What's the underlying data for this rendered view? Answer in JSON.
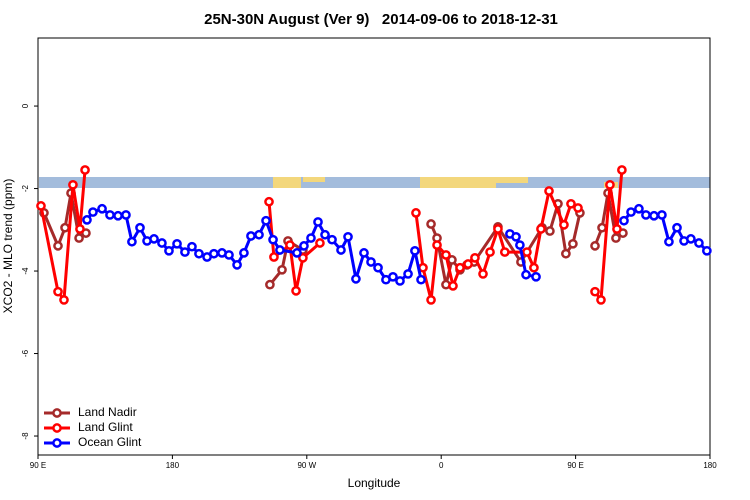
{
  "chart_data": {
    "type": "line",
    "title": "25N-30N August (Ver 9)   2014-09-06 to 2018-12-31",
    "x_label": "Longitude",
    "y_label": "XCO2 - MLO trend (ppm)",
    "xlim": [
      90,
      540
    ],
    "ylim": [
      -8.46,
      1.65
    ],
    "xticks": [
      {
        "value": 90,
        "label": "90 E"
      },
      {
        "value": 180,
        "label": "180"
      },
      {
        "value": 270,
        "label": "90 W"
      },
      {
        "value": 360,
        "label": "0"
      },
      {
        "value": 450,
        "label": "90 E"
      },
      {
        "value": 540,
        "label": "180"
      }
    ],
    "yticks": [
      0,
      -2,
      -4,
      -6,
      -8
    ],
    "legend": "bottom-left",
    "series": [
      {
        "name": "Land Nadir",
        "color": "#a52a2a",
        "x": [
          94.0,
          103.4,
          108.1,
          112.1,
          117.5,
          122.1,
          null,
          245.3,
          253.4,
          257.4,
          267.4,
          null,
          353.2,
          357.2,
          363.2,
          367.2,
          372.6,
          377.3,
          382.0,
          398.0,
          413.4,
          427.5,
          432.8,
          438.2,
          443.5,
          448.2,
          452.9,
          null,
          463.0,
          467.7,
          471.7,
          477.0,
          481.7
        ],
        "values": [
          -2.59,
          -3.39,
          -2.95,
          -2.11,
          -3.2,
          -3.08,
          null,
          -4.33,
          -3.97,
          -3.27,
          -3.49,
          null,
          -2.86,
          -3.2,
          -4.33,
          -3.73,
          -3.97,
          -3.85,
          -3.78,
          -2.93,
          -3.78,
          -2.95,
          -3.03,
          -2.37,
          -3.58,
          -3.34,
          -2.59,
          null,
          -3.39,
          -2.95,
          -2.11,
          -3.2,
          -3.08
        ]
      },
      {
        "name": "Land Glint",
        "color": "#ff0000",
        "x": [
          92.0,
          103.4,
          107.4,
          113.4,
          118.1,
          121.5,
          null,
          244.7,
          248.0,
          258.7,
          262.8,
          267.4,
          278.8,
          null,
          343.1,
          347.8,
          353.2,
          357.2,
          363.2,
          367.9,
          372.6,
          378.0,
          382.6,
          388.0,
          392.7,
          398.0,
          402.6,
          417.4,
          422.1,
          426.8,
          432.2,
          442.2,
          446.9,
          451.6,
          null,
          463.0,
          467.0,
          473.0,
          477.7,
          481.0
        ],
        "values": [
          -2.42,
          -4.5,
          -4.7,
          -1.91,
          -2.98,
          -1.55,
          null,
          -2.32,
          -3.66,
          -3.37,
          -4.48,
          -3.68,
          -3.32,
          null,
          -2.59,
          -3.92,
          -4.7,
          -3.37,
          -3.61,
          -4.36,
          -3.92,
          -3.83,
          -3.68,
          -4.07,
          -3.54,
          -2.98,
          -3.54,
          -3.54,
          -3.92,
          -2.98,
          -2.06,
          -2.88,
          -2.37,
          -2.47,
          null,
          -4.5,
          -4.7,
          -1.91,
          -2.98,
          -1.55
        ]
      },
      {
        "name": "Ocean Glint",
        "color": "#0000ff",
        "x": [
          122.8,
          126.8,
          132.9,
          138.2,
          143.6,
          148.9,
          152.9,
          158.3,
          163.0,
          167.7,
          173.0,
          177.7,
          183.1,
          188.4,
          193.1,
          197.8,
          203.2,
          207.8,
          213.2,
          217.9,
          223.3,
          227.9,
          232.6,
          238.0,
          242.7,
          247.4,
          252.0,
          263.4,
          268.1,
          272.8,
          277.5,
          282.2,
          286.9,
          292.9,
          297.6,
          302.9,
          308.3,
          313.0,
          317.7,
          323.0,
          327.7,
          332.4,
          337.8,
          342.4,
          346.5,
          null,
          406.0,
          410.1,
          412.7,
          416.8,
          423.5,
          null,
          482.4,
          487.1,
          492.4,
          497.1,
          502.5,
          507.8,
          512.5,
          517.9,
          522.6,
          527.2,
          532.6,
          537.9
        ],
        "values": [
          -2.76,
          -2.57,
          -2.49,
          -2.64,
          -2.66,
          -2.64,
          -3.29,
          -2.95,
          -3.27,
          -3.22,
          -3.32,
          -3.51,
          -3.34,
          -3.54,
          -3.41,
          -3.58,
          -3.66,
          -3.58,
          -3.56,
          -3.61,
          -3.85,
          -3.56,
          -3.15,
          -3.12,
          -2.78,
          -3.24,
          -3.49,
          -3.56,
          -3.39,
          -3.2,
          -2.81,
          -3.12,
          -3.24,
          -3.49,
          -3.17,
          -4.19,
          -3.56,
          -3.78,
          -3.92,
          -4.21,
          -4.14,
          -4.24,
          -4.07,
          -3.51,
          -4.21,
          null,
          -3.1,
          -3.17,
          -3.37,
          -4.09,
          -4.14,
          null,
          -2.78,
          -2.57,
          -2.49,
          -2.64,
          -2.66,
          -2.64,
          -3.29,
          -2.95,
          -3.27,
          -3.22,
          -3.32,
          -3.51
        ]
      }
    ]
  }
}
